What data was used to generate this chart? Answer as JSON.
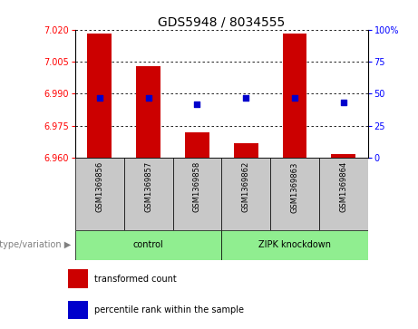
{
  "title": "GDS5948 / 8034555",
  "samples": [
    "GSM1369856",
    "GSM1369857",
    "GSM1369858",
    "GSM1369862",
    "GSM1369863",
    "GSM1369864"
  ],
  "bar_tops": [
    7.018,
    7.003,
    6.972,
    6.967,
    7.018,
    6.962
  ],
  "bar_bottom": 6.96,
  "percentile_values": [
    6.988,
    6.988,
    6.985,
    6.988,
    6.988,
    6.986
  ],
  "ylim_left": [
    6.96,
    7.02
  ],
  "ylim_right": [
    0,
    100
  ],
  "yticks_left": [
    6.96,
    6.975,
    6.99,
    7.005,
    7.02
  ],
  "yticks_right": [
    0,
    25,
    50,
    75,
    100
  ],
  "bar_color": "#cc0000",
  "dot_color": "#0000cc",
  "group1_label": "control",
  "group2_label": "ZIPK knockdown",
  "group1_indices": [
    0,
    1,
    2
  ],
  "group2_indices": [
    3,
    4,
    5
  ],
  "group_color": "#90ee90",
  "sample_box_color": "#c8c8c8",
  "genotype_label": "genotype/variation",
  "legend_bar_label": "transformed count",
  "legend_dot_label": "percentile rank within the sample",
  "bar_width": 0.5,
  "title_fontsize": 10,
  "tick_fontsize": 7,
  "label_fontsize": 7,
  "sample_fontsize": 6
}
